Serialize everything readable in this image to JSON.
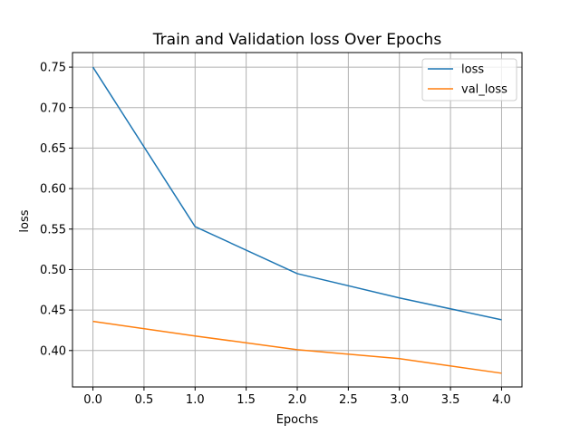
{
  "chart_data": {
    "type": "line",
    "title": "Train and Validation loss Over Epochs",
    "xlabel": "Epochs",
    "ylabel": "loss",
    "x": [
      0,
      1,
      2,
      3,
      4
    ],
    "xlim": [
      -0.2,
      4.2
    ],
    "ylim": [
      0.355,
      0.768
    ],
    "xticks": [
      0.0,
      0.5,
      1.0,
      1.5,
      2.0,
      2.5,
      3.0,
      3.5,
      4.0
    ],
    "xtick_labels": [
      "0.0",
      "0.5",
      "1.0",
      "1.5",
      "2.0",
      "2.5",
      "3.0",
      "3.5",
      "4.0"
    ],
    "yticks": [
      0.4,
      0.45,
      0.5,
      0.55,
      0.6,
      0.65,
      0.7,
      0.75
    ],
    "ytick_labels": [
      "0.40",
      "0.45",
      "0.50",
      "0.55",
      "0.60",
      "0.65",
      "0.70",
      "0.75"
    ],
    "grid": true,
    "legend_position": "top-right",
    "series": [
      {
        "name": "loss",
        "color": "#1f77b4",
        "values": [
          0.75,
          0.553,
          0.495,
          0.465,
          0.438
        ]
      },
      {
        "name": "val_loss",
        "color": "#ff7f0e",
        "values": [
          0.436,
          0.418,
          0.401,
          0.39,
          0.372
        ]
      }
    ]
  }
}
